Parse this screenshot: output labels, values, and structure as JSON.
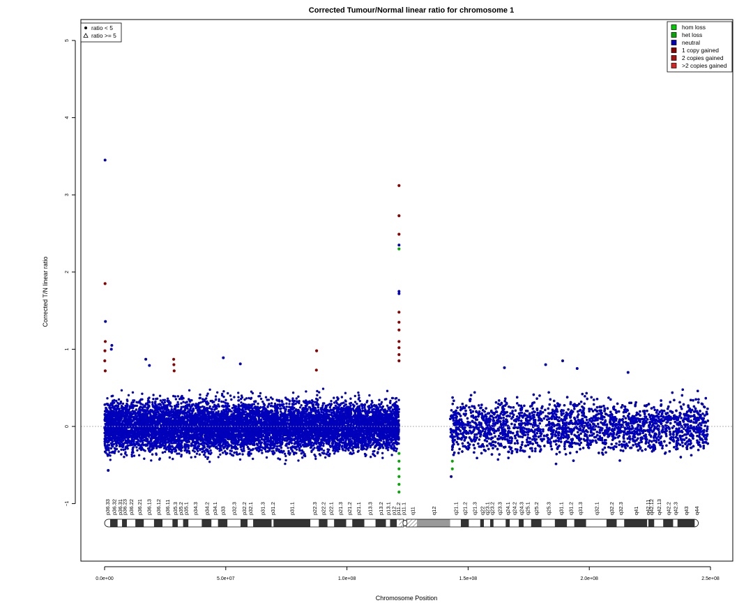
{
  "chart_data": {
    "type": "scatter",
    "title": "Corrected Tumour/Normal linear ratio for chromosome  1",
    "xlabel": "Chromosome Position",
    "ylabel": "Corrected T/N linear ratio",
    "xlim": [
      0,
      250000000
    ],
    "ylim": [
      -1.8,
      5.3
    ],
    "x_ticks": [
      0,
      50000000,
      100000000,
      150000000,
      200000000,
      250000000
    ],
    "x_tick_labels": [
      "0.0e+00",
      "5.0e+07",
      "1.0e+08",
      "1.5e+08",
      "2.0e+08",
      "2.5e+08"
    ],
    "y_ticks": [
      -1,
      0,
      1,
      2,
      3,
      4,
      5
    ],
    "y_tick_labels": [
      "−1",
      "0",
      "1",
      "2",
      "3",
      "4",
      "5"
    ],
    "reference_line_y": 0,
    "colors": {
      "hom_loss": "#00cc00",
      "het_loss": "#00aa00",
      "neutral": "#0000bb",
      "one_copy_gained": "#8b0000",
      "two_copies_gained": "#aa1010",
      "more_copies_gained": "#dd2222",
      "ideogram_dark": "#333333",
      "ideogram_light": "#ffffff",
      "ideogram_gvar": "#999999"
    },
    "shape_legend": {
      "items": [
        {
          "symbol": "dot",
          "label": "ratio < 5"
        },
        {
          "symbol": "triangle",
          "label": "ratio >= 5"
        }
      ],
      "placement": "top-left"
    },
    "color_legend": {
      "items": [
        {
          "label": "hom loss",
          "color": "#00cc00"
        },
        {
          "label": "het loss",
          "color": "#00aa00"
        },
        {
          "label": "neutral",
          "color": "#0000bb"
        },
        {
          "label": "1 copy gained",
          "color": "#8b0000"
        },
        {
          "label": "2 copies gained",
          "color": "#aa1010"
        },
        {
          "label": ">2 copies gained",
          "color": "#dd2222"
        }
      ],
      "placement": "top-right"
    },
    "series": [
      {
        "name": "neutral",
        "segments": [
          {
            "x_range": [
              0,
              121500000
            ],
            "y_center": 0.0,
            "noise_band": [
              -0.5,
              0.55
            ]
          },
          {
            "x_range": [
              142500000,
              249000000
            ],
            "y_center": 0.0,
            "noise_band": [
              -0.5,
              0.55
            ]
          }
        ],
        "outliers": [
          {
            "x": 200000,
            "y": 3.45
          },
          {
            "x": 350000,
            "y": 1.36
          },
          {
            "x": 3000000,
            "y": 1.05
          },
          {
            "x": 2800000,
            "y": 1.0
          },
          {
            "x": 17000000,
            "y": 0.87
          },
          {
            "x": 18500000,
            "y": 0.79
          },
          {
            "x": 49000000,
            "y": 0.89
          },
          {
            "x": 56000000,
            "y": 0.81
          },
          {
            "x": 121500000,
            "y": 2.35
          },
          {
            "x": 121500000,
            "y": 1.75
          },
          {
            "x": 121500000,
            "y": 1.72
          },
          {
            "x": 165000000,
            "y": 0.76
          },
          {
            "x": 182000000,
            "y": 0.8
          },
          {
            "x": 189000000,
            "y": 0.85
          },
          {
            "x": 195000000,
            "y": 0.75
          },
          {
            "x": 216000000,
            "y": 0.7
          },
          {
            "x": 143000000,
            "y": -0.65
          },
          {
            "x": 1500000,
            "y": -0.57
          }
        ]
      },
      {
        "name": "1 copy gained",
        "points": [
          {
            "x": 200000,
            "y": 1.85
          },
          {
            "x": 300000,
            "y": 1.1
          },
          {
            "x": 150000,
            "y": 0.98
          },
          {
            "x": 100000,
            "y": 0.85
          },
          {
            "x": 250000,
            "y": 0.72
          },
          {
            "x": 28500000,
            "y": 0.87
          },
          {
            "x": 28600000,
            "y": 0.8
          },
          {
            "x": 28700000,
            "y": 0.72
          },
          {
            "x": 87500000,
            "y": 0.98
          },
          {
            "x": 87400000,
            "y": 0.73
          },
          {
            "x": 121500000,
            "y": 3.12
          },
          {
            "x": 121500000,
            "y": 2.73
          },
          {
            "x": 121500000,
            "y": 2.49
          },
          {
            "x": 121500000,
            "y": 1.48
          },
          {
            "x": 121500000,
            "y": 1.35
          },
          {
            "x": 121500000,
            "y": 1.25
          },
          {
            "x": 121500000,
            "y": 1.1
          },
          {
            "x": 121500000,
            "y": 1.02
          },
          {
            "x": 121500000,
            "y": 0.93
          },
          {
            "x": 121500000,
            "y": 0.85
          }
        ]
      },
      {
        "name": "het loss",
        "points": [
          {
            "x": 121500000,
            "y": 2.3
          },
          {
            "x": 121500000,
            "y": -0.35
          },
          {
            "x": 121500000,
            "y": -0.45
          },
          {
            "x": 121500000,
            "y": -0.55
          },
          {
            "x": 121500000,
            "y": -0.65
          },
          {
            "x": 121500000,
            "y": -0.75
          },
          {
            "x": 121500000,
            "y": -0.85
          },
          {
            "x": 143500000,
            "y": -0.45
          },
          {
            "x": 143500000,
            "y": -0.55
          }
        ]
      }
    ],
    "ideogram": {
      "p_arm_end": 123400000,
      "q_arm_start": 124500000,
      "bands": [
        {
          "name": "p36.33",
          "start": 0,
          "end": 2300000,
          "stain": "gneg"
        },
        {
          "name": "p36.32",
          "start": 2300000,
          "end": 5400000,
          "stain": "gpos"
        },
        {
          "name": "p36.31",
          "start": 5400000,
          "end": 7200000,
          "stain": "gneg"
        },
        {
          "name": "p36.23",
          "start": 7200000,
          "end": 9200000,
          "stain": "gpos"
        },
        {
          "name": "p36.22",
          "start": 9200000,
          "end": 12700000,
          "stain": "gneg"
        },
        {
          "name": "p36.21",
          "start": 12700000,
          "end": 16200000,
          "stain": "gpos"
        },
        {
          "name": "p36.13",
          "start": 16200000,
          "end": 20400000,
          "stain": "gneg"
        },
        {
          "name": "p36.12",
          "start": 20400000,
          "end": 23900000,
          "stain": "gpos"
        },
        {
          "name": "p36.11",
          "start": 23900000,
          "end": 28000000,
          "stain": "gneg"
        },
        {
          "name": "p35.3",
          "start": 28000000,
          "end": 30200000,
          "stain": "gpos"
        },
        {
          "name": "p35.2",
          "start": 30200000,
          "end": 32400000,
          "stain": "gneg"
        },
        {
          "name": "p35.1",
          "start": 32400000,
          "end": 34600000,
          "stain": "gpos"
        },
        {
          "name": "p34.3",
          "start": 34600000,
          "end": 40100000,
          "stain": "gneg"
        },
        {
          "name": "p34.2",
          "start": 40100000,
          "end": 44100000,
          "stain": "gpos"
        },
        {
          "name": "p34.1",
          "start": 44100000,
          "end": 46800000,
          "stain": "gneg"
        },
        {
          "name": "p33",
          "start": 46800000,
          "end": 50700000,
          "stain": "gpos"
        },
        {
          "name": "p32.3",
          "start": 50700000,
          "end": 56100000,
          "stain": "gneg"
        },
        {
          "name": "p32.2",
          "start": 56100000,
          "end": 59000000,
          "stain": "gpos"
        },
        {
          "name": "p32.1",
          "start": 59000000,
          "end": 61300000,
          "stain": "gneg"
        },
        {
          "name": "p31.3",
          "start": 61300000,
          "end": 68900000,
          "stain": "gpos"
        },
        {
          "name": "p31.2",
          "start": 68900000,
          "end": 69700000,
          "stain": "gneg"
        },
        {
          "name": "p31.1",
          "start": 69700000,
          "end": 84900000,
          "stain": "gpos"
        },
        {
          "name": "p22.3",
          "start": 84900000,
          "end": 88400000,
          "stain": "gneg"
        },
        {
          "name": "p22.2",
          "start": 88400000,
          "end": 92000000,
          "stain": "gpos"
        },
        {
          "name": "p22.1",
          "start": 92000000,
          "end": 94700000,
          "stain": "gneg"
        },
        {
          "name": "p21.3",
          "start": 94700000,
          "end": 99700000,
          "stain": "gpos"
        },
        {
          "name": "p21.2",
          "start": 99700000,
          "end": 102200000,
          "stain": "gneg"
        },
        {
          "name": "p21.1",
          "start": 102200000,
          "end": 107200000,
          "stain": "gpos"
        },
        {
          "name": "p13.3",
          "start": 107200000,
          "end": 111800000,
          "stain": "gneg"
        },
        {
          "name": "p13.2",
          "start": 111800000,
          "end": 116100000,
          "stain": "gpos"
        },
        {
          "name": "p13.1",
          "start": 116100000,
          "end": 117800000,
          "stain": "gneg"
        },
        {
          "name": "p12",
          "start": 117800000,
          "end": 120600000,
          "stain": "gpos"
        },
        {
          "name": "p11.2",
          "start": 120600000,
          "end": 121500000,
          "stain": "gneg"
        },
        {
          "name": "p11.1",
          "start": 121500000,
          "end": 125000000,
          "stain": "stalk"
        },
        {
          "name": "q11",
          "start": 125000000,
          "end": 128900000,
          "stain": "stalk"
        },
        {
          "name": "q12",
          "start": 128900000,
          "end": 142600000,
          "stain": "gvar"
        },
        {
          "name": "q21.1",
          "start": 142600000,
          "end": 147000000,
          "stain": "gneg"
        },
        {
          "name": "q21.2",
          "start": 147000000,
          "end": 150300000,
          "stain": "gpos"
        },
        {
          "name": "q21.3",
          "start": 150300000,
          "end": 155000000,
          "stain": "gneg"
        },
        {
          "name": "q22",
          "start": 155000000,
          "end": 156500000,
          "stain": "gpos"
        },
        {
          "name": "q23.1",
          "start": 156500000,
          "end": 159100000,
          "stain": "gneg"
        },
        {
          "name": "q23.2",
          "start": 159100000,
          "end": 160500000,
          "stain": "gpos"
        },
        {
          "name": "q23.3",
          "start": 160500000,
          "end": 165500000,
          "stain": "gneg"
        },
        {
          "name": "q24.1",
          "start": 165500000,
          "end": 167200000,
          "stain": "gpos"
        },
        {
          "name": "q24.2",
          "start": 167200000,
          "end": 170900000,
          "stain": "gneg"
        },
        {
          "name": "q24.3",
          "start": 170900000,
          "end": 172900000,
          "stain": "gpos"
        },
        {
          "name": "q25.1",
          "start": 172900000,
          "end": 176000000,
          "stain": "gneg"
        },
        {
          "name": "q25.2",
          "start": 176000000,
          "end": 180300000,
          "stain": "gpos"
        },
        {
          "name": "q25.3",
          "start": 180300000,
          "end": 185800000,
          "stain": "gneg"
        },
        {
          "name": "q31.1",
          "start": 185800000,
          "end": 190800000,
          "stain": "gpos"
        },
        {
          "name": "q31.2",
          "start": 190800000,
          "end": 193800000,
          "stain": "gneg"
        },
        {
          "name": "q31.3",
          "start": 193800000,
          "end": 198700000,
          "stain": "gpos"
        },
        {
          "name": "q32.1",
          "start": 198700000,
          "end": 207100000,
          "stain": "gneg"
        },
        {
          "name": "q32.2",
          "start": 207100000,
          "end": 211300000,
          "stain": "gpos"
        },
        {
          "name": "q32.3",
          "start": 211300000,
          "end": 214400000,
          "stain": "gneg"
        },
        {
          "name": "q41",
          "start": 214400000,
          "end": 223900000,
          "stain": "gpos"
        },
        {
          "name": "q42.11",
          "start": 223900000,
          "end": 224400000,
          "stain": "gneg"
        },
        {
          "name": "q42.12",
          "start": 224400000,
          "end": 226800000,
          "stain": "gpos"
        },
        {
          "name": "q42.13",
          "start": 226800000,
          "end": 230500000,
          "stain": "gneg"
        },
        {
          "name": "q42.2",
          "start": 230500000,
          "end": 234600000,
          "stain": "gpos"
        },
        {
          "name": "q42.3",
          "start": 234600000,
          "end": 236400000,
          "stain": "gneg"
        },
        {
          "name": "q43",
          "start": 236400000,
          "end": 243500000,
          "stain": "gpos"
        },
        {
          "name": "q44",
          "start": 243500000,
          "end": 245000000,
          "stain": "gneg"
        }
      ]
    }
  }
}
